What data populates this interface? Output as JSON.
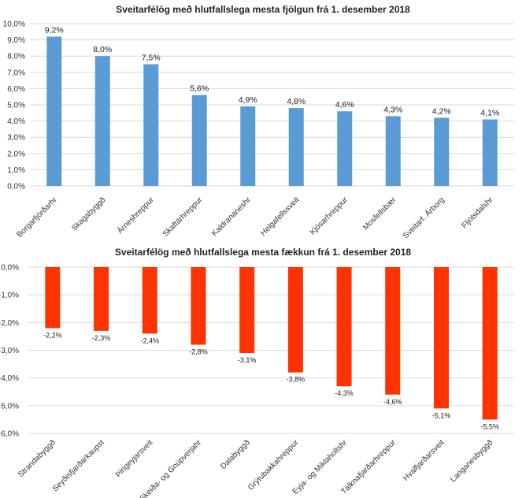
{
  "chart_data": [
    {
      "type": "bar",
      "title": "Sveitarfélög með hlutfallslega mesta fjölgun frá 1. desember 2018",
      "categories": [
        "Borgarfjörðarhr",
        "Skagabyggð",
        "Árneshreppur",
        "Skaftárhreppur",
        "Kaldrananeshr",
        "Helgafellssveit",
        "Kjósarhreppur",
        "Mosfellsbær",
        "Sveitarf. Árborg",
        "Fljótsdalshr"
      ],
      "values": [
        9.2,
        8.0,
        7.5,
        5.6,
        4.9,
        4.8,
        4.6,
        4.3,
        4.2,
        4.1
      ],
      "value_labels": [
        "9,2%",
        "8,0%",
        "7,5%",
        "5,6%",
        "4,9%",
        "4,8%",
        "4,6%",
        "4,3%",
        "4,2%",
        "4,1%"
      ],
      "y_ticks": [
        "0,0%",
        "1,0%",
        "2,0%",
        "3,0%",
        "4,0%",
        "5,0%",
        "6,0%",
        "7,0%",
        "8,0%",
        "9,0%",
        "10,0%"
      ],
      "ylim": [
        0,
        10
      ],
      "grid": true,
      "color": "#5b9bd5"
    },
    {
      "type": "bar",
      "title": "Sveitarfélög með hlutfallslega mesta fækkun frá 1. desember 2018",
      "categories": [
        "Strandabyggð",
        "Seyðisfjarðarkaupst",
        "Þingeyjarsveit",
        "Skeiða- og Gnúpverjahr",
        "Dalabyggð",
        "Grýtubakkahreppur",
        "Eyja- og Miklaholtshr",
        "Tálknafjarðarhreppur",
        "Hvalfjarðarsveit",
        "Langanesbyggð"
      ],
      "values": [
        -2.2,
        -2.3,
        -2.4,
        -2.8,
        -3.1,
        -3.8,
        -4.3,
        -4.6,
        -5.1,
        -5.5
      ],
      "value_labels": [
        "-2,2%",
        "-2,3%",
        "-2,4%",
        "-2,8%",
        "-3,1%",
        "-3,8%",
        "-4,3%",
        "-4,6%",
        "-5,1%",
        "-5,5%"
      ],
      "y_ticks": [
        "0,0%",
        "-1,0%",
        "-2,0%",
        "-3,0%",
        "-4,0%",
        "-5,0%",
        "-6,0%"
      ],
      "ylim": [
        -6,
        0
      ],
      "grid": true,
      "color": "#ff3300"
    }
  ]
}
